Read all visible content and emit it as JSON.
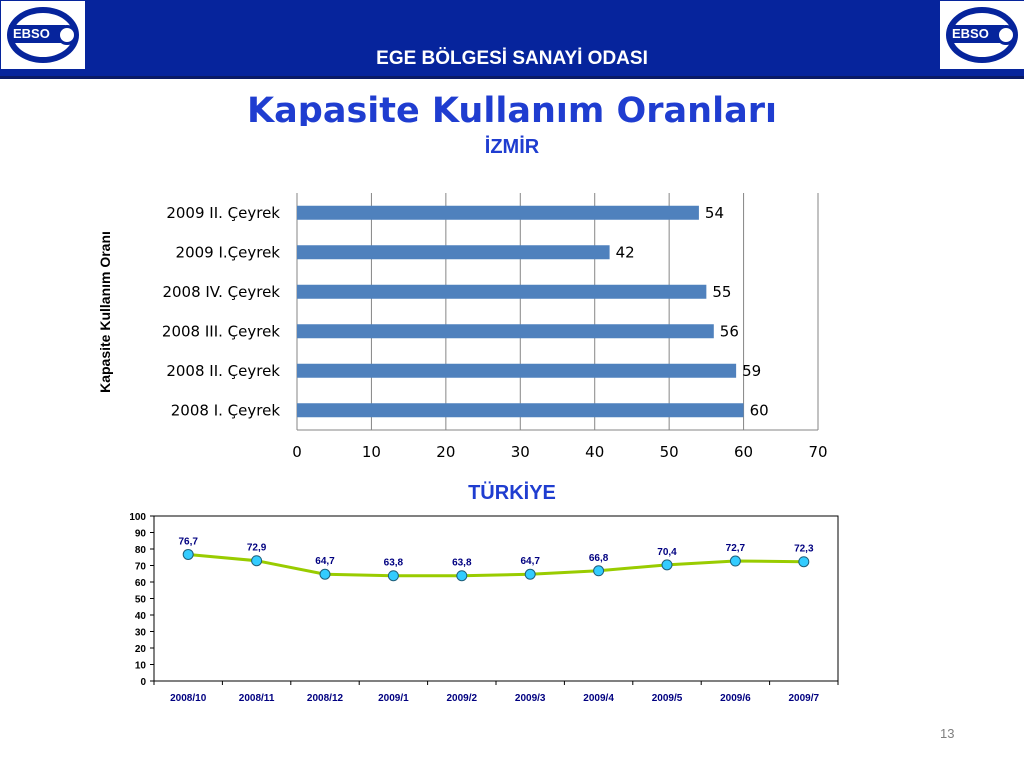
{
  "header": {
    "org_name": "EGE BÖLGESİ SANAYİ ODASI",
    "logo_text": "EBSO",
    "title": "Kapasite Kullanım Oranları"
  },
  "page_number": "13",
  "chart_data": [
    {
      "type": "bar",
      "orientation": "horizontal",
      "title": "İZMİR",
      "ylabel": "Kapasite Kullanım Oranı",
      "xlabel": "",
      "categories": [
        "2009 II. Çeyrek",
        "2009 I.Çeyrek",
        "2008 IV. Çeyrek",
        "2008 III. Çeyrek",
        "2008 II. Çeyrek",
        "2008 I. Çeyrek"
      ],
      "values": [
        54,
        42,
        55,
        56,
        59,
        60
      ],
      "xlim": [
        0,
        70
      ],
      "xticks": [
        0,
        10,
        20,
        30,
        40,
        50,
        60,
        70
      ],
      "grid": "vertical",
      "color": "#4f81bd"
    },
    {
      "type": "line",
      "title": "TÜRKİYE",
      "categories": [
        "2008/10",
        "2008/11",
        "2008/12",
        "2009/1",
        "2009/2",
        "2009/3",
        "2009/4",
        "2009/5",
        "2009/6",
        "2009/7"
      ],
      "values": [
        76.7,
        72.9,
        64.7,
        63.8,
        63.8,
        64.7,
        66.8,
        70.4,
        72.7,
        72.3
      ],
      "labels": [
        "76,7",
        "72,9",
        "64,7",
        "63,8",
        "63,8",
        "64,7",
        "66,8",
        "70,4",
        "72,7",
        "72,3"
      ],
      "ylim": [
        0,
        100
      ],
      "yticks": [
        0,
        10,
        20,
        30,
        40,
        50,
        60,
        70,
        80,
        90,
        100
      ],
      "grid": false,
      "line_color": "#99cc00",
      "marker_color": "#33ccff",
      "label_color": "#000080"
    }
  ]
}
